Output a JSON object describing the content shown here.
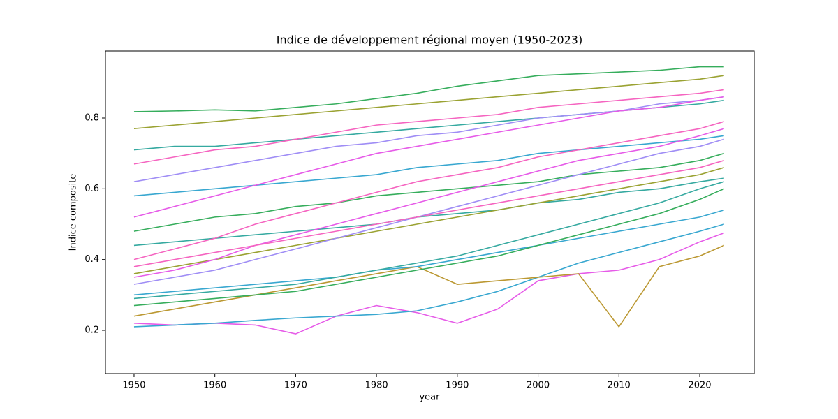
{
  "chart_data": {
    "type": "line",
    "title": "Indice de développement régional moyen (1950-2023)",
    "xlabel": "year",
    "ylabel": "Indice composite",
    "x": [
      1950,
      1955,
      1960,
      1965,
      1970,
      1975,
      1980,
      1985,
      1990,
      1995,
      2000,
      2005,
      2010,
      2015,
      2020,
      2023
    ],
    "series": [
      {
        "color": "#36ad5c",
        "values": [
          0.818,
          0.82,
          0.823,
          0.82,
          0.83,
          0.84,
          0.855,
          0.87,
          0.89,
          0.905,
          0.92,
          0.925,
          0.93,
          0.935,
          0.945,
          0.945
        ]
      },
      {
        "color": "#e65be8",
        "values": [
          0.22,
          0.215,
          0.22,
          0.215,
          0.19,
          0.24,
          0.27,
          0.25,
          0.22,
          0.26,
          0.34,
          0.36,
          0.37,
          0.4,
          0.45,
          0.475
        ]
      },
      {
        "color": "#38a7d0",
        "values": [
          0.21,
          0.215,
          0.22,
          0.228,
          0.235,
          0.24,
          0.245,
          0.255,
          0.28,
          0.31,
          0.35,
          0.39,
          0.42,
          0.45,
          0.48,
          0.5
        ]
      },
      {
        "color": "#bb9832",
        "values": [
          0.24,
          0.26,
          0.28,
          0.3,
          0.32,
          0.34,
          0.36,
          0.38,
          0.33,
          0.34,
          0.35,
          0.36,
          0.21,
          0.38,
          0.41,
          0.44
        ]
      },
      {
        "color": "#9aa232",
        "values": [
          0.77,
          0.78,
          0.79,
          0.8,
          0.81,
          0.82,
          0.83,
          0.84,
          0.85,
          0.86,
          0.87,
          0.88,
          0.89,
          0.9,
          0.91,
          0.92
        ]
      },
      {
        "color": "#35a9a0",
        "values": [
          0.71,
          0.72,
          0.72,
          0.73,
          0.74,
          0.75,
          0.76,
          0.77,
          0.78,
          0.79,
          0.8,
          0.81,
          0.82,
          0.83,
          0.84,
          0.85
        ]
      },
      {
        "color": "#f564c0",
        "values": [
          0.67,
          0.69,
          0.71,
          0.72,
          0.74,
          0.76,
          0.78,
          0.79,
          0.8,
          0.81,
          0.83,
          0.84,
          0.85,
          0.86,
          0.87,
          0.88
        ]
      },
      {
        "color": "#9f8df5",
        "values": [
          0.62,
          0.64,
          0.66,
          0.68,
          0.7,
          0.72,
          0.73,
          0.75,
          0.76,
          0.78,
          0.8,
          0.81,
          0.82,
          0.84,
          0.85,
          0.86
        ]
      },
      {
        "color": "#38a7d0",
        "values": [
          0.58,
          0.59,
          0.6,
          0.61,
          0.62,
          0.63,
          0.64,
          0.66,
          0.67,
          0.68,
          0.7,
          0.71,
          0.72,
          0.73,
          0.74,
          0.75
        ]
      },
      {
        "color": "#e65be8",
        "values": [
          0.52,
          0.55,
          0.58,
          0.61,
          0.64,
          0.67,
          0.7,
          0.72,
          0.74,
          0.76,
          0.78,
          0.8,
          0.82,
          0.83,
          0.85,
          0.86
        ]
      },
      {
        "color": "#36ad5c",
        "values": [
          0.48,
          0.5,
          0.52,
          0.53,
          0.55,
          0.56,
          0.58,
          0.59,
          0.6,
          0.61,
          0.62,
          0.64,
          0.65,
          0.66,
          0.68,
          0.7
        ]
      },
      {
        "color": "#35a9a0",
        "values": [
          0.44,
          0.45,
          0.46,
          0.47,
          0.48,
          0.49,
          0.5,
          0.52,
          0.53,
          0.54,
          0.56,
          0.57,
          0.59,
          0.6,
          0.62,
          0.63
        ]
      },
      {
        "color": "#f564c0",
        "values": [
          0.4,
          0.43,
          0.46,
          0.5,
          0.53,
          0.56,
          0.59,
          0.62,
          0.64,
          0.66,
          0.69,
          0.71,
          0.73,
          0.75,
          0.77,
          0.79
        ]
      },
      {
        "color": "#9aa232",
        "values": [
          0.36,
          0.38,
          0.4,
          0.42,
          0.44,
          0.46,
          0.48,
          0.5,
          0.52,
          0.54,
          0.56,
          0.58,
          0.6,
          0.62,
          0.64,
          0.66
        ]
      },
      {
        "color": "#9f8df5",
        "values": [
          0.33,
          0.35,
          0.37,
          0.4,
          0.43,
          0.46,
          0.49,
          0.52,
          0.55,
          0.58,
          0.61,
          0.64,
          0.67,
          0.7,
          0.72,
          0.74
        ]
      },
      {
        "color": "#38a7d0",
        "values": [
          0.3,
          0.31,
          0.32,
          0.33,
          0.34,
          0.35,
          0.37,
          0.38,
          0.4,
          0.42,
          0.44,
          0.46,
          0.48,
          0.5,
          0.52,
          0.54
        ]
      },
      {
        "color": "#e65be8",
        "values": [
          0.35,
          0.37,
          0.4,
          0.44,
          0.47,
          0.5,
          0.53,
          0.56,
          0.59,
          0.62,
          0.65,
          0.68,
          0.7,
          0.72,
          0.75,
          0.77
        ]
      },
      {
        "color": "#36ad5c",
        "values": [
          0.27,
          0.28,
          0.29,
          0.3,
          0.31,
          0.33,
          0.35,
          0.37,
          0.39,
          0.41,
          0.44,
          0.47,
          0.5,
          0.53,
          0.57,
          0.6
        ]
      },
      {
        "color": "#35a9a0",
        "values": [
          0.29,
          0.3,
          0.31,
          0.32,
          0.33,
          0.35,
          0.37,
          0.39,
          0.41,
          0.44,
          0.47,
          0.5,
          0.53,
          0.56,
          0.6,
          0.62
        ]
      },
      {
        "color": "#f564c0",
        "values": [
          0.38,
          0.4,
          0.42,
          0.44,
          0.46,
          0.48,
          0.5,
          0.52,
          0.54,
          0.56,
          0.58,
          0.6,
          0.62,
          0.64,
          0.66,
          0.68
        ]
      }
    ],
    "xlim": [
      1946.46,
      2026.74
    ],
    "xticks": [
      1950,
      1960,
      1970,
      1980,
      1990,
      2000,
      2010,
      2020
    ],
    "ylim": [
      0.0776,
      0.9895
    ],
    "yticks": [
      0.2,
      0.4,
      0.6,
      0.8
    ]
  }
}
